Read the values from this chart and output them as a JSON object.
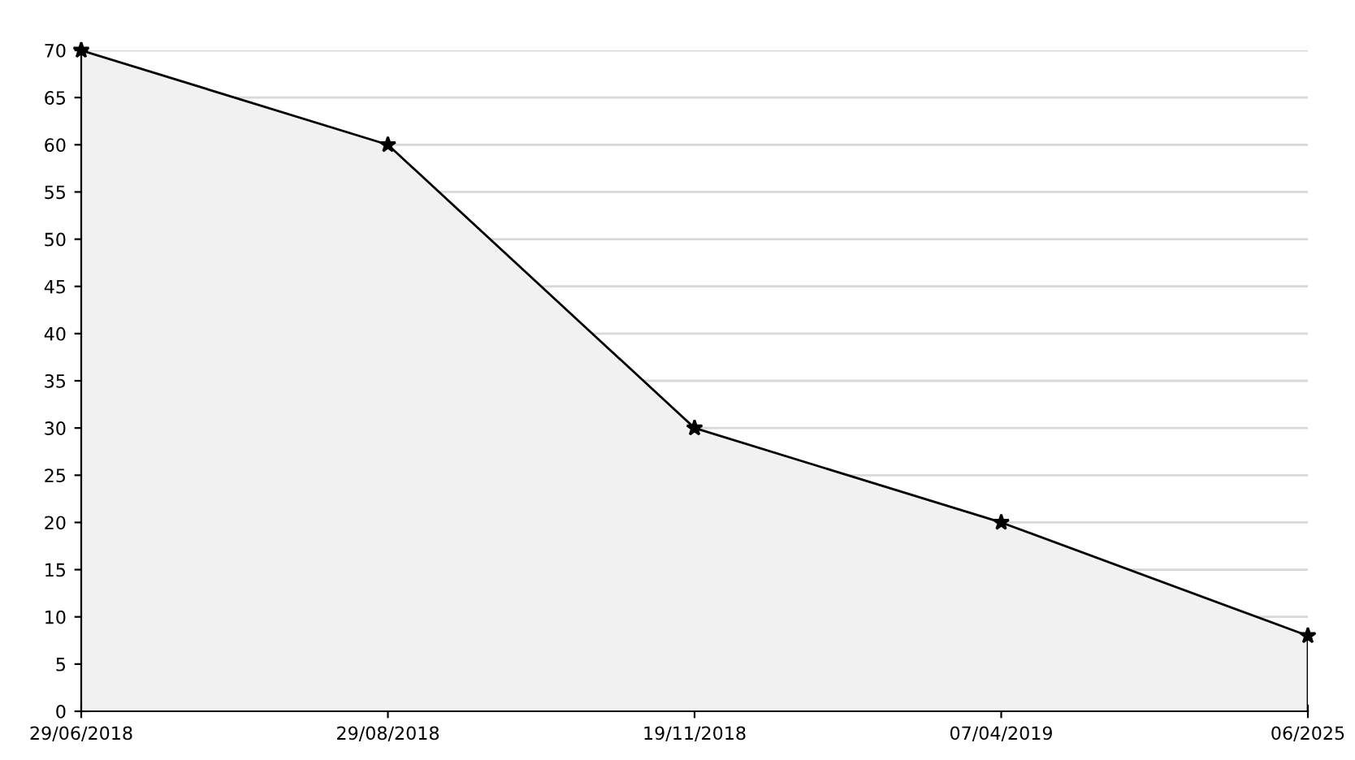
{
  "chart_data": {
    "type": "area",
    "categories": [
      "29/06/2018",
      "29/08/2018",
      "19/11/2018",
      "07/04/2019",
      "06/2025"
    ],
    "series": [
      {
        "color": "#f1f1f1",
        "values": [
          70,
          60,
          30,
          20,
          8
        ]
      }
    ],
    "ylim": [
      0,
      70
    ],
    "yticks": [
      0,
      5,
      10,
      15,
      20,
      25,
      30,
      35,
      40,
      45,
      50,
      55,
      60,
      65,
      70
    ],
    "grid": "y",
    "marker": "star",
    "line_style": "solid"
  }
}
